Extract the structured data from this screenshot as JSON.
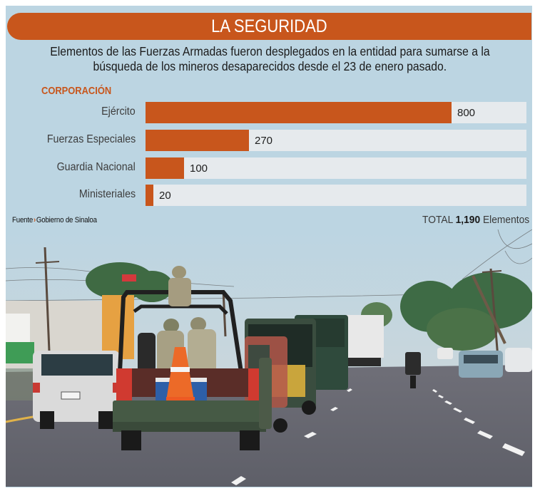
{
  "header": {
    "title": "LA SEGURIDAD"
  },
  "subtitle": {
    "line1": "Elementos de las Fuerzas Armadas fueron desplegados en la entidad para sumarse a la",
    "line2": "búsqueda de los mineros desaparecidos desde el 23 de enero pasado."
  },
  "chart_data": {
    "type": "bar",
    "orientation": "horizontal",
    "title": "LA SEGURIDAD",
    "subtitle": "Elementos de las Fuerzas Armadas fueron desplegados en la entidad para sumarse a la búsqueda de los mineros desaparecidos desde el 23 de enero pasado.",
    "category_heading": "CORPORACIÓN",
    "categories": [
      "Ejército",
      "Fuerzas Especiales",
      "Guardia Nacional",
      "Ministeriales"
    ],
    "values": [
      800,
      270,
      100,
      20
    ],
    "value_labels": [
      "800",
      "270",
      "100",
      "20"
    ],
    "xlim": [
      0,
      1000
    ],
    "grid": false,
    "legend": "none",
    "bar_color": "#c8561c",
    "track_color": "#e6eaed",
    "total_label": "TOTAL",
    "total_value": "1,190",
    "total_unit": "Elementos",
    "source": "Fuente Gobierno de Sinaloa"
  },
  "chart": {
    "heading": "CORPORACIÓN",
    "rows": [
      {
        "label": "Ejército",
        "value": 800,
        "value_label": "800"
      },
      {
        "label": "Fuerzas Especiales",
        "value": 270,
        "value_label": "270"
      },
      {
        "label": "Guardia Nacional",
        "value": 100,
        "value_label": "100"
      },
      {
        "label": "Ministeriales",
        "value": 20,
        "value_label": "20"
      }
    ],
    "scale_max": 1000
  },
  "footer": {
    "source_prefix": "Fuente",
    "source_arrow": "›",
    "source_name": "Gobierno de Sinaloa",
    "total_prefix": "TOTAL",
    "total_value": "1,190",
    "total_suffix": "Elementos"
  },
  "photo": {
    "description": "Convoy de camionetas militares con soldados circulando por una avenida"
  },
  "colors": {
    "accent": "#c8561c",
    "panel": "#bcd5e2",
    "track": "#e6eaed"
  }
}
